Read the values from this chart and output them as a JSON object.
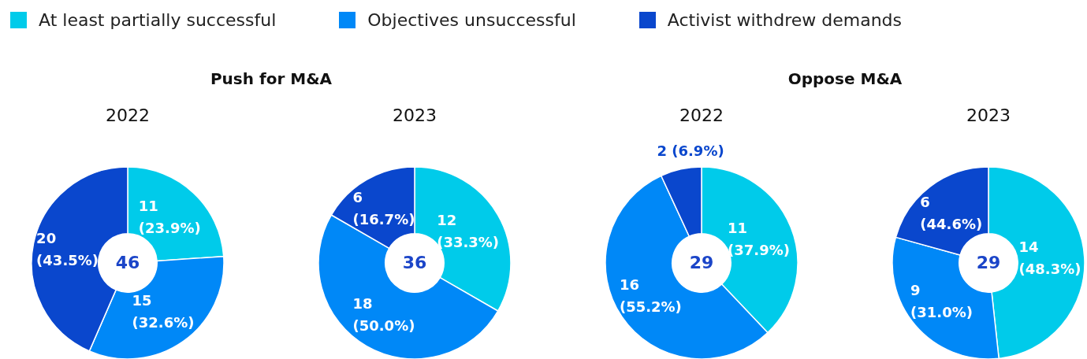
{
  "chart_data": [
    {
      "type": "donut",
      "title": "Push for M&A",
      "subtitle": "2022",
      "legend": "top",
      "categories": [
        "At least partially successful",
        "Objectives unsuccessful",
        "Activist withdrew demands"
      ],
      "colors": [
        "#00cbea",
        "#0088f7",
        "#0a47cd"
      ],
      "values": [
        11,
        15,
        20
      ],
      "value_labels": [
        "11 (23.9%)",
        "15 (32.6%)",
        "20 (43.5%)"
      ],
      "annotations": [
        "46"
      ]
    },
    {
      "type": "donut",
      "subtitle": "2023",
      "colors": [
        "#00cbea",
        "#0088f7",
        "#0a47cd"
      ],
      "values": [
        12,
        18,
        6
      ],
      "value_labels": [
        "12 (33.3%)",
        "18 (50.0%)",
        "6 (16.7%)"
      ],
      "annotations": [
        "36"
      ]
    },
    {
      "type": "donut",
      "title": "Oppose M&A",
      "subtitle": "2022",
      "colors": [
        "#00cbea",
        "#0088f7",
        "#0a47cd"
      ],
      "values": [
        11,
        16,
        2
      ],
      "value_labels": [
        "11 (37.9%)",
        "16 (55.2%)",
        "2 (6.9%)"
      ],
      "annotations": [
        "29"
      ]
    },
    {
      "type": "donut",
      "subtitle": "2023",
      "colors": [
        "#00cbea",
        "#0088f7",
        "#0a47cd"
      ],
      "values": [
        14,
        9,
        6
      ],
      "value_labels": [
        "14 (48.3%)",
        "9 (31.0%)",
        "6 (44.6%)"
      ],
      "annotations": [
        "29"
      ]
    }
  ]
}
